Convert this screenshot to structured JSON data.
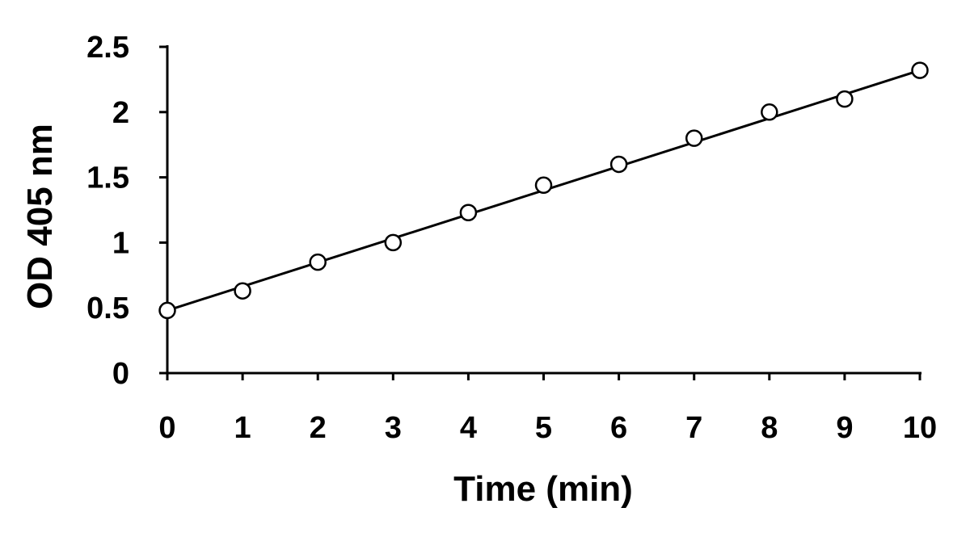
{
  "chart_data": {
    "type": "scatter",
    "title": "",
    "xlabel": "Time (min)",
    "ylabel": "OD 405 nm",
    "xlim": [
      0,
      10
    ],
    "ylim": [
      0,
      2.5
    ],
    "x_ticks": [
      0,
      1,
      2,
      3,
      4,
      5,
      6,
      7,
      8,
      9,
      10
    ],
    "x_tick_labels": [
      "0",
      "1",
      "2",
      "3",
      "4",
      "5",
      "6",
      "7",
      "8",
      "9",
      "10"
    ],
    "y_ticks": [
      0,
      0.5,
      1,
      1.5,
      2,
      2.5
    ],
    "y_tick_labels": [
      "0",
      "0.5",
      "1",
      "1.5",
      "2",
      "2.5"
    ],
    "grid": false,
    "legend": "none",
    "series": [
      {
        "marker": "open-circle",
        "x": [
          0,
          1,
          2,
          3,
          4,
          5,
          6,
          7,
          8,
          9,
          10
        ],
        "y": [
          0.48,
          0.63,
          0.85,
          1.0,
          1.23,
          1.44,
          1.6,
          1.8,
          2.0,
          2.1,
          2.32
        ]
      }
    ],
    "trendline": {
      "type": "linear",
      "x": [
        0,
        10
      ],
      "y": [
        0.48,
        2.32
      ]
    },
    "colors": {
      "axis": "#000000",
      "marker_stroke": "#000000",
      "marker_fill": "#ffffff",
      "line": "#000000"
    }
  }
}
